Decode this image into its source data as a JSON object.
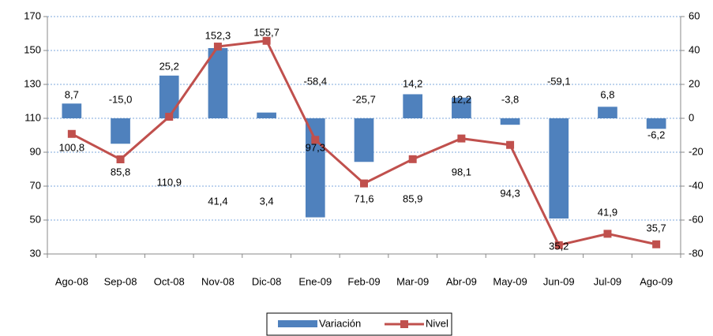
{
  "chart_data": {
    "type": "bar-line",
    "categories": [
      "Ago-08",
      "Sep-08",
      "Oct-08",
      "Nov-08",
      "Dic-08",
      "Ene-09",
      "Feb-09",
      "Mar-09",
      "Abr-09",
      "May-09",
      "Jun-09",
      "Jul-09",
      "Ago-09"
    ],
    "series": [
      {
        "name": "Variación",
        "type": "bar",
        "axis": "y2",
        "color": "#4f81bd",
        "values": [
          8.7,
          -15.0,
          25.2,
          41.4,
          3.4,
          -58.4,
          -25.7,
          14.2,
          12.2,
          -3.8,
          -59.1,
          6.8,
          -6.2
        ],
        "value_labels": [
          "8,7",
          "-15,0",
          "25,2",
          "41,4",
          "3,4",
          "-58,4",
          "-25,7",
          "14,2",
          "12,2",
          "-3,8",
          "-59,1",
          "6,8",
          "-6,2"
        ]
      },
      {
        "name": "Nivel",
        "type": "line",
        "axis": "y",
        "color": "#c0504d",
        "values": [
          100.8,
          85.8,
          110.9,
          152.3,
          155.7,
          97.3,
          71.6,
          85.9,
          98.1,
          94.3,
          35.2,
          41.9,
          35.7
        ],
        "value_labels": [
          "100,8",
          "85,8",
          "110,9",
          "152,3",
          "155,7",
          "97,3",
          "71,6",
          "85,9",
          "98,1",
          "94,3",
          "35,2",
          "41,9",
          "35,7"
        ]
      }
    ],
    "ylim": [
      30,
      170
    ],
    "yticks": [
      30,
      50,
      70,
      90,
      110,
      130,
      150,
      170
    ],
    "y2lim": [
      -80,
      60
    ],
    "y2ticks": [
      -80,
      -60,
      -40,
      -20,
      0,
      20,
      40,
      60
    ],
    "grid": true,
    "legend": "bottom"
  }
}
